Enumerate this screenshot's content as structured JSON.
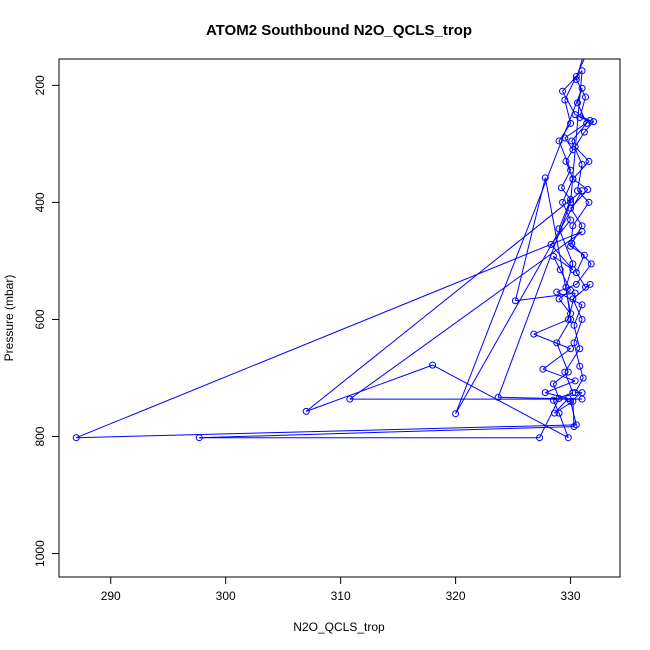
{
  "chart_data": {
    "type": "line",
    "title": "ATOM2 Southbound N2O_QCLS_trop",
    "xlabel": "N2O_QCLS_trop",
    "ylabel": "Pressure (mbar)",
    "xlim": [
      285.5,
      334.3
    ],
    "ylim": [
      1040,
      155
    ],
    "y_reversed": true,
    "grid": false,
    "x_ticks": [
      290,
      300,
      310,
      320,
      330
    ],
    "y_ticks": [
      200,
      400,
      600,
      800,
      1000
    ],
    "series": [
      {
        "color": "#0000ff",
        "markers": "open-circle",
        "points": [
          [
            331.1,
            150
          ],
          [
            330.5,
            190
          ],
          [
            331.3,
            220
          ],
          [
            330.8,
            255
          ],
          [
            332.0,
            262
          ],
          [
            331.2,
            280
          ],
          [
            330.4,
            305
          ],
          [
            331.6,
            330
          ],
          [
            330.2,
            360
          ],
          [
            331.5,
            378
          ],
          [
            330.0,
            410
          ],
          [
            331.0,
            440
          ],
          [
            330.1,
            470
          ],
          [
            331.8,
            505
          ],
          [
            330.5,
            540
          ],
          [
            328.8,
            553
          ],
          [
            331.0,
            575
          ],
          [
            330.3,
            610
          ],
          [
            330.8,
            650
          ],
          [
            329.5,
            690
          ],
          [
            330.2,
            725
          ],
          [
            328.5,
            738
          ],
          [
            329.0,
            760
          ],
          [
            329.8,
            802
          ],
          [
            318.0,
            678
          ],
          [
            307.0,
            757
          ],
          [
            331.0,
            380
          ],
          [
            320.0,
            761
          ],
          [
            331.0,
            205
          ],
          [
            330.6,
            230
          ],
          [
            331.4,
            265
          ],
          [
            330.1,
            295
          ],
          [
            331.0,
            335
          ],
          [
            330.6,
            380
          ],
          [
            331.6,
            400
          ],
          [
            330.2,
            440
          ],
          [
            330.0,
            475
          ],
          [
            331.2,
            490
          ],
          [
            330.5,
            520
          ],
          [
            331.3,
            545
          ],
          [
            331.7,
            540
          ],
          [
            330.2,
            565
          ],
          [
            331.0,
            600
          ],
          [
            330.3,
            640
          ],
          [
            330.8,
            680
          ],
          [
            331.1,
            700
          ],
          [
            330.4,
            725
          ],
          [
            331.0,
            725
          ],
          [
            330.0,
            740
          ],
          [
            330.5,
            780
          ],
          [
            287.0,
            802
          ],
          [
            331.0,
            450
          ],
          [
            310.8,
            736
          ],
          [
            331.0,
            736
          ],
          [
            323.7,
            733
          ],
          [
            330.0,
            400
          ],
          [
            331.0,
            175
          ],
          [
            329.3,
            210
          ],
          [
            330.4,
            250
          ],
          [
            331.7,
            260
          ],
          [
            329.5,
            290
          ],
          [
            330.2,
            310
          ],
          [
            329.6,
            330
          ],
          [
            330.2,
            360
          ],
          [
            329.3,
            400
          ],
          [
            330.0,
            430
          ],
          [
            328.3,
            472
          ],
          [
            330.2,
            515
          ],
          [
            328.5,
            492
          ],
          [
            329.1,
            515
          ],
          [
            330.0,
            550
          ],
          [
            329.0,
            565
          ],
          [
            330.0,
            590
          ],
          [
            327.8,
            358
          ],
          [
            325.2,
            568
          ],
          [
            330.4,
            555
          ],
          [
            329.8,
            600
          ],
          [
            326.8,
            625
          ],
          [
            330.0,
            650
          ],
          [
            327.6,
            685
          ],
          [
            330.4,
            705
          ],
          [
            327.8,
            725
          ],
          [
            329.8,
            735
          ],
          [
            328.6,
            760
          ],
          [
            330.2,
            740
          ],
          [
            330.3,
            783
          ],
          [
            297.7,
            802
          ],
          [
            327.3,
            802
          ],
          [
            329.0,
            735
          ],
          [
            328.5,
            710
          ],
          [
            329.8,
            690
          ],
          [
            328.8,
            640
          ],
          [
            330.0,
            600
          ],
          [
            329.6,
            545
          ],
          [
            330.2,
            505
          ],
          [
            329.0,
            445
          ],
          [
            330.0,
            395
          ],
          [
            329.2,
            375
          ],
          [
            330.0,
            345
          ],
          [
            329.0,
            295
          ],
          [
            330.0,
            265
          ],
          [
            329.5,
            225
          ],
          [
            330.5,
            185
          ],
          [
            331.3,
            150
          ]
        ]
      }
    ]
  }
}
